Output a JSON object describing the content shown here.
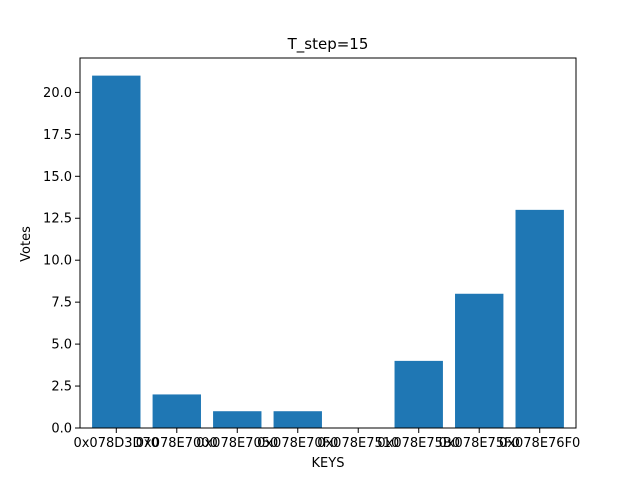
{
  "chart_data": {
    "type": "bar",
    "title": "T_step=15",
    "xlabel": "KEYS",
    "ylabel": "Votes",
    "categories": [
      "0x078D3D70",
      "0x078E7000",
      "0x078E7050",
      "0x078E70F0",
      "0x078E7510",
      "0x078E75B0",
      "0x078E75F0",
      "0x078E76F0"
    ],
    "values": [
      21,
      2,
      1,
      1,
      0,
      4,
      8,
      13
    ],
    "ylim": [
      0,
      22.05
    ],
    "yticks": [
      0.0,
      2.5,
      5.0,
      7.5,
      10.0,
      12.5,
      15.0,
      17.5,
      20.0
    ],
    "ytick_labels": [
      "0.0",
      "2.5",
      "5.0",
      "7.5",
      "10.0",
      "12.5",
      "15.0",
      "17.5",
      "20.0"
    ],
    "bar_color": "#1f77b4",
    "grid": false,
    "legend": "none"
  }
}
